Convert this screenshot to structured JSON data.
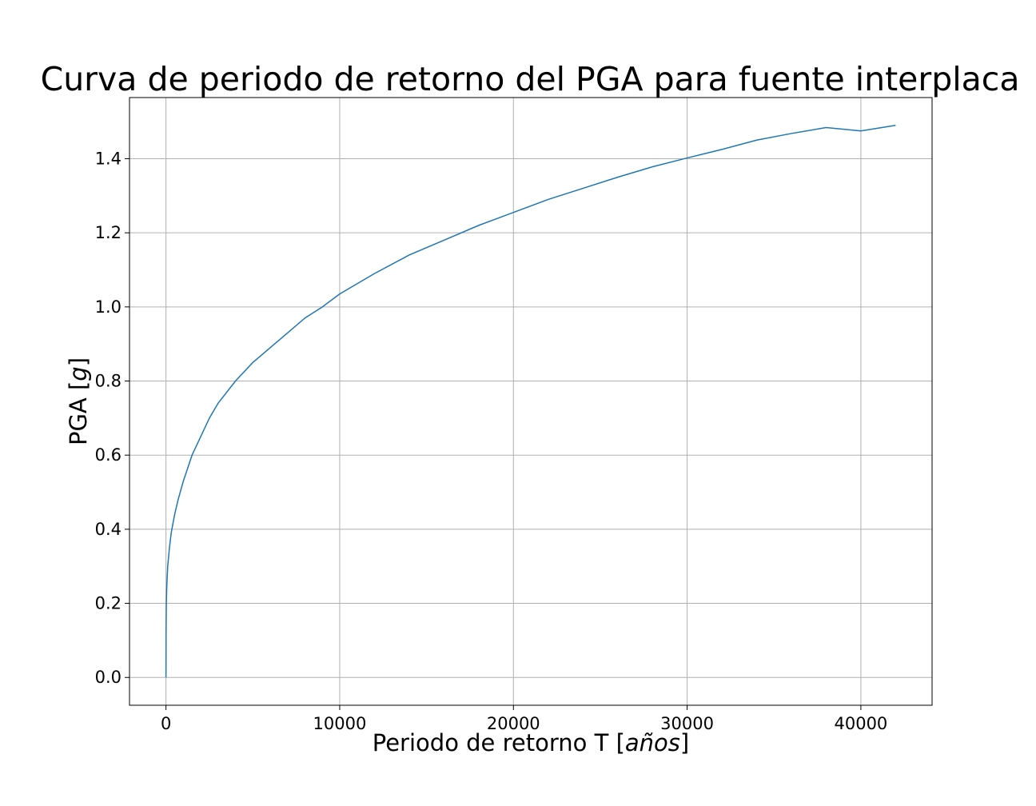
{
  "chart_data": {
    "type": "line",
    "title": "Curva de periodo de retorno del PGA para fuente interplaca",
    "xlabel_text": "Periodo de retorno T ",
    "xlabel_italic": "años",
    "ylabel_text": "PGA ",
    "ylabel_italic": "g",
    "xlim": [
      -2100,
      44100
    ],
    "ylim": [
      -0.075,
      1.565
    ],
    "xticks": [
      0,
      10000,
      20000,
      30000,
      40000
    ],
    "yticks": [
      0.0,
      0.2,
      0.4,
      0.6,
      0.8,
      1.0,
      1.2,
      1.4
    ],
    "ytick_labels": [
      "0.0",
      "0.2",
      "0.4",
      "0.6",
      "0.8",
      "1.0",
      "1.2",
      "1.4"
    ],
    "grid": true,
    "color": "#1f77b4",
    "series": [
      {
        "x": [
          0,
          5,
          20,
          50,
          100,
          200,
          300,
          500,
          700,
          1000,
          1500,
          2000,
          2500,
          3000,
          4000,
          5000,
          6000,
          7000,
          8000,
          9000,
          10000,
          12000,
          14000,
          16000,
          18000,
          20000,
          22000,
          24000,
          26000,
          28000,
          30000,
          32000,
          34000,
          36000,
          38000,
          40000,
          42000
        ],
        "y": [
          0.0,
          0.12,
          0.2,
          0.25,
          0.3,
          0.35,
          0.39,
          0.44,
          0.48,
          0.53,
          0.6,
          0.65,
          0.7,
          0.74,
          0.8,
          0.85,
          0.89,
          0.93,
          0.97,
          1.0,
          1.035,
          1.09,
          1.14,
          1.18,
          1.22,
          1.255,
          1.29,
          1.32,
          1.35,
          1.378,
          1.402,
          1.425,
          1.45,
          1.468,
          1.484,
          1.475,
          1.49
        ]
      }
    ]
  }
}
